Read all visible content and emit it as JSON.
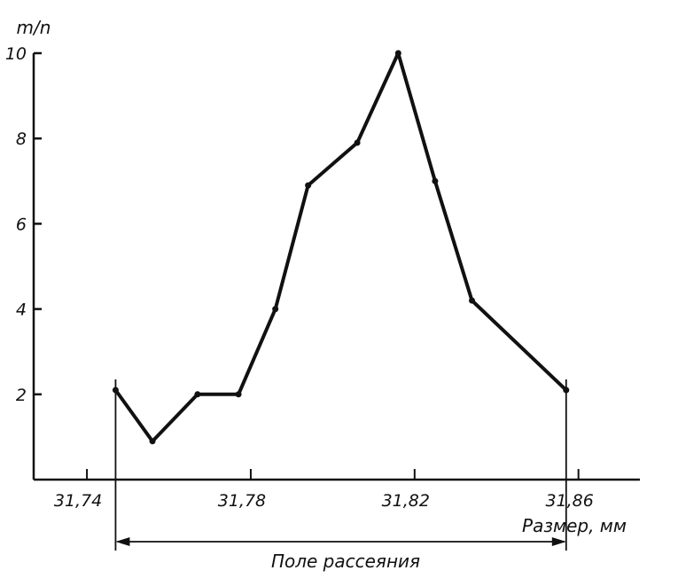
{
  "chart_data": {
    "type": "line",
    "title": "",
    "ylabel": "m/n",
    "xlabel": "Размер, мм",
    "range_label": "Поле рассеяния",
    "xlim": [
      31.727,
      31.875
    ],
    "ylim": [
      0,
      10
    ],
    "grid": false,
    "x_ticks": [
      {
        "value": 31.74,
        "label": "31,74"
      },
      {
        "value": 31.78,
        "label": "31,78"
      },
      {
        "value": 31.82,
        "label": "31,82"
      },
      {
        "value": 31.86,
        "label": "31,86"
      }
    ],
    "y_ticks": [
      {
        "value": 2,
        "label": "2"
      },
      {
        "value": 4,
        "label": "4"
      },
      {
        "value": 6,
        "label": "6"
      },
      {
        "value": 8,
        "label": "8"
      },
      {
        "value": 10,
        "label": "10"
      }
    ],
    "range_bounds": [
      31.747,
      31.857
    ],
    "series": [
      {
        "name": "",
        "color": "#111111",
        "points": [
          {
            "x": 31.747,
            "y": 2.1
          },
          {
            "x": 31.756,
            "y": 0.9
          },
          {
            "x": 31.767,
            "y": 2.0
          },
          {
            "x": 31.777,
            "y": 2.0
          },
          {
            "x": 31.786,
            "y": 4.0
          },
          {
            "x": 31.794,
            "y": 6.9
          },
          {
            "x": 31.806,
            "y": 7.9
          },
          {
            "x": 31.816,
            "y": 10.0
          },
          {
            "x": 31.825,
            "y": 7.0
          },
          {
            "x": 31.834,
            "y": 4.2
          },
          {
            "x": 31.857,
            "y": 2.1
          }
        ]
      }
    ]
  }
}
